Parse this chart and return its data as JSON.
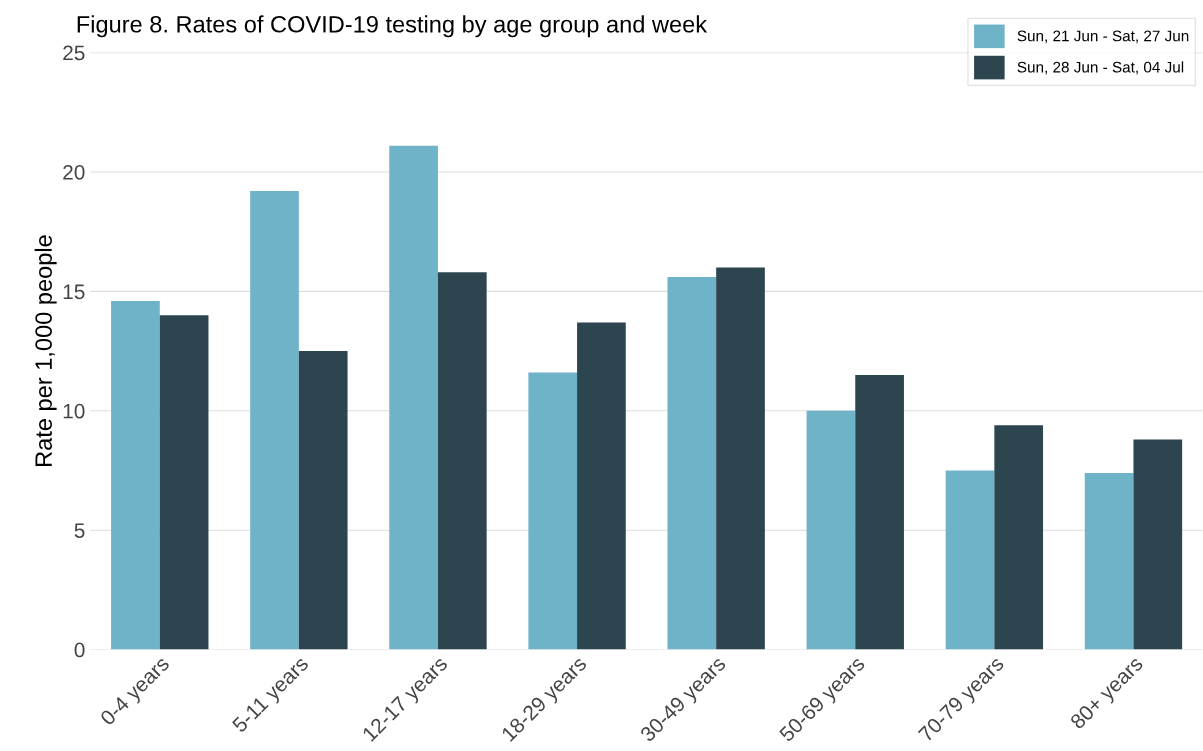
{
  "chart_data": {
    "type": "bar",
    "title": "Figure 8. Rates of COVID-19 testing by age group and week",
    "ylabel": "Rate per 1,000 people",
    "categories": [
      "0-4 years",
      "5-11 years",
      "12-17 years",
      "18-29 years",
      "30-49 years",
      "50-69 years",
      "70-79 years",
      "80+ years"
    ],
    "series": [
      {
        "name": "Sun, 21 Jun - Sat, 27 Jun",
        "color": "#6fb3c8",
        "values": [
          14.6,
          19.2,
          21.1,
          11.6,
          15.6,
          10.0,
          7.5,
          7.4
        ]
      },
      {
        "name": "Sun, 28 Jun - Sat, 04 Jul",
        "color": "#2d454f",
        "values": [
          14.0,
          12.5,
          15.8,
          13.7,
          16.0,
          11.5,
          9.4,
          8.8
        ]
      }
    ],
    "ylim": [
      0,
      25
    ],
    "yticks": [
      0,
      5,
      10,
      15,
      20,
      25
    ],
    "grid": "y",
    "legend": "top right"
  }
}
